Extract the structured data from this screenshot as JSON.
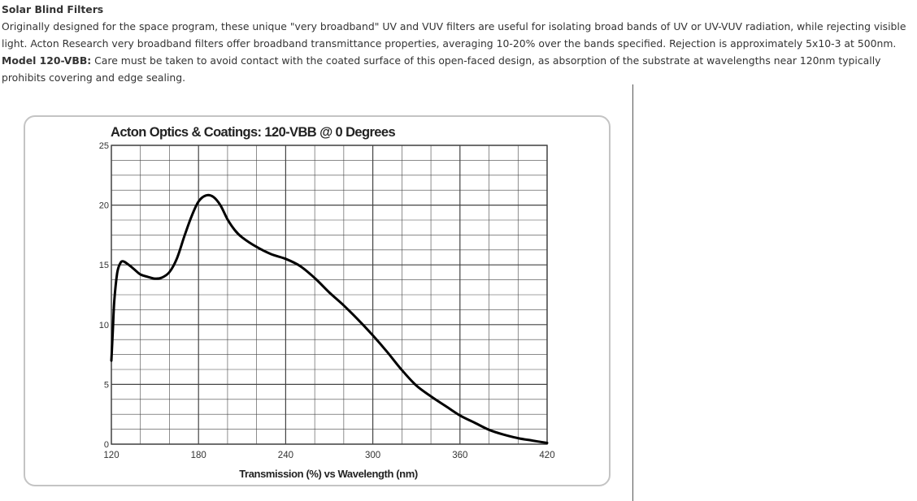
{
  "heading": "Solar Blind Filters",
  "description": "Originally designed for the space program, these unique \"very broadband\" UV and VUV filters are useful for isolating broad bands of UV or UV-VUV radiation, while rejecting visible light. Acton Research very broadband filters offer broadband transmittance properties, averaging 10-20% over the bands specified. Rejection is approximately 5x10-3 at 500nm.",
  "model": {
    "label": "Model 120-VBB:",
    "text": " Care must be taken to avoid contact with the coated surface of this open-faced design, as absorption of the substrate at wavelengths near 120nm typically prohibits covering and edge sealing."
  },
  "colors": {
    "text": "#333333",
    "curve": "#000000",
    "grid": "#444444",
    "frame": "#c4c4c4"
  },
  "chart_data": {
    "type": "line",
    "title": "Acton Optics & Coatings: 120-VBB @ 0 Degrees",
    "xlabel": "Transmission (%) vs Wavelength (nm)",
    "ylabel": "",
    "xlim": [
      120,
      420
    ],
    "ylim": [
      0,
      25
    ],
    "x_ticks": [
      "120",
      "180",
      "240",
      "300",
      "360",
      "420"
    ],
    "y_ticks": [
      "0",
      "5",
      "10",
      "15",
      "20",
      "25"
    ],
    "grid": true,
    "legend": "none",
    "series": [
      {
        "points": [
          [
            120,
            7
          ],
          [
            121,
            9.5
          ],
          [
            122,
            12
          ],
          [
            124,
            14.3
          ],
          [
            126,
            15.1
          ],
          [
            128,
            15.3
          ],
          [
            132,
            15
          ],
          [
            136,
            14.6
          ],
          [
            140,
            14.2
          ],
          [
            145,
            14
          ],
          [
            150,
            13.85
          ],
          [
            155,
            13.95
          ],
          [
            160,
            14.4
          ],
          [
            165,
            15.5
          ],
          [
            170,
            17.3
          ],
          [
            175,
            19
          ],
          [
            180,
            20.3
          ],
          [
            185,
            20.8
          ],
          [
            190,
            20.7
          ],
          [
            195,
            20
          ],
          [
            200,
            18.8
          ],
          [
            205,
            17.9
          ],
          [
            210,
            17.3
          ],
          [
            220,
            16.5
          ],
          [
            230,
            15.9
          ],
          [
            240,
            15.5
          ],
          [
            250,
            14.9
          ],
          [
            260,
            13.9
          ],
          [
            270,
            12.7
          ],
          [
            280,
            11.6
          ],
          [
            290,
            10.4
          ],
          [
            300,
            9.1
          ],
          [
            310,
            7.7
          ],
          [
            320,
            6.2
          ],
          [
            330,
            4.9
          ],
          [
            340,
            4
          ],
          [
            350,
            3.2
          ],
          [
            360,
            2.4
          ],
          [
            370,
            1.8
          ],
          [
            380,
            1.2
          ],
          [
            390,
            0.8
          ],
          [
            400,
            0.5
          ],
          [
            410,
            0.3
          ],
          [
            420,
            0.1
          ]
        ]
      }
    ]
  }
}
